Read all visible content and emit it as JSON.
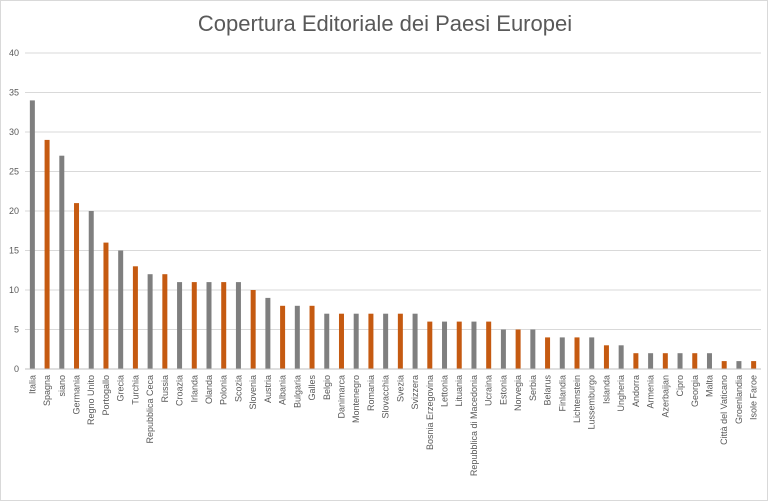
{
  "chart_data": {
    "type": "bar",
    "title": "Copertura Editoriale dei Paesi Europei",
    "xlabel": "",
    "ylabel": "",
    "ylim": [
      0,
      40
    ],
    "y_ticks": [
      0,
      5,
      10,
      15,
      20,
      25,
      30,
      35,
      40
    ],
    "grid": true,
    "legend": "none",
    "categories": [
      "Italia",
      "Spagna",
      "siano",
      "Germania",
      "Regno Unito",
      "Portogallo",
      "Grecia",
      "Turchia",
      "Repubblica Ceca",
      "Russia",
      "Croazia",
      "Irlanda",
      "Olanda",
      "Polonia",
      "Scozia",
      "Slovenia",
      "Austria",
      "Albania",
      "Bulgaria",
      "Galles",
      "Belgio",
      "Danimarca",
      "Montenegro",
      "Romania",
      "Slovacchia",
      "Svezia",
      "Svizzera",
      "Bosnia Erzegovina",
      "Lettonia",
      "Lituania",
      "Repubblica di Macedonia",
      "Ucraina",
      "Estonia",
      "Norvegia",
      "Serbia",
      "Belarus",
      "Finlandia",
      "Lichtenstein",
      "Lussemburgo",
      "Islanda",
      "Ungheria",
      "Andorra",
      "Armenia",
      "Azerbaijan",
      "Cipro",
      "Georgia",
      "Malta",
      "Città del Vaticano",
      "Groenlandia",
      "Isole Faroe"
    ],
    "values": [
      34,
      29,
      27,
      21,
      20,
      16,
      15,
      13,
      12,
      12,
      11,
      11,
      11,
      11,
      11,
      10,
      9,
      8,
      8,
      8,
      7,
      7,
      7,
      7,
      7,
      7,
      7,
      6,
      6,
      6,
      6,
      6,
      5,
      5,
      5,
      4,
      4,
      4,
      4,
      3,
      3,
      2,
      2,
      2,
      2,
      2,
      2,
      1,
      1,
      1
    ],
    "colors": {
      "gray": "#7f7f7f",
      "orange": "#c55a11",
      "grid": "#d9d9d9",
      "axis": "#d9d9d9",
      "text": "#595959"
    }
  }
}
